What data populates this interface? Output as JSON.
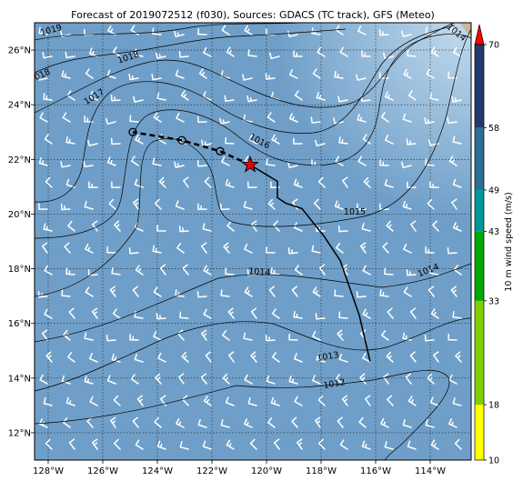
{
  "title": "Forecast of 2019072512 (f030), Sources: GDACS (TC track), GFS (Meteo)",
  "map": {
    "lon_range": [
      -128.5,
      -112.5
    ],
    "lat_range": [
      11,
      27
    ],
    "lon_ticks": [
      -128,
      -126,
      -124,
      -122,
      -120,
      -118,
      -116,
      -114
    ],
    "lon_tick_labels": [
      "128°W",
      "126°W",
      "124°W",
      "122°W",
      "120°W",
      "118°W",
      "116°W",
      "114°W"
    ],
    "lat_ticks": [
      12,
      14,
      16,
      18,
      20,
      22,
      24,
      26
    ],
    "lat_tick_labels": [
      "12°N",
      "14°N",
      "16°N",
      "18°N",
      "20°N",
      "22°N",
      "24°N",
      "26°N"
    ],
    "grid": true,
    "background_color": "#6f9fc8"
  },
  "colorbar": {
    "label": "10 m wind speed (m/s)",
    "tick_labels": [
      "10",
      "18",
      "33",
      "43",
      "49",
      "58",
      "70"
    ],
    "bands": [
      {
        "from": 10,
        "to": 18,
        "color": "#ffff00"
      },
      {
        "from": 18,
        "to": 33,
        "color": "#80d000"
      },
      {
        "from": 33,
        "to": 43,
        "color": "#00a800"
      },
      {
        "from": 43,
        "to": 49,
        "color": "#009999"
      },
      {
        "from": 49,
        "to": 58,
        "color": "#2a6f96"
      },
      {
        "from": 58,
        "to": 70,
        "color": "#223a70"
      }
    ],
    "extend_color": "#ff0000"
  },
  "isobars": [
    {
      "label": "1019"
    },
    {
      "label": "1018"
    },
    {
      "label": "1018"
    },
    {
      "label": "1017"
    },
    {
      "label": "1016"
    },
    {
      "label": "1015"
    },
    {
      "label": "1014"
    },
    {
      "label": "1014"
    },
    {
      "label": "1014"
    },
    {
      "label": "1013"
    },
    {
      "label": "1012"
    }
  ],
  "past_track": [
    [
      -116.2,
      14.6
    ],
    [
      -116.6,
      16.3
    ],
    [
      -117.3,
      18.3
    ],
    [
      -117.9,
      19.2
    ],
    [
      -118.7,
      20.2
    ],
    [
      -119.3,
      20.4
    ],
    [
      -119.6,
      20.6
    ],
    [
      -119.6,
      21.2
    ],
    [
      -120.6,
      21.8
    ]
  ],
  "current_position": [
    -120.6,
    21.8
  ],
  "forecast_track": [
    [
      -120.6,
      21.8
    ],
    [
      -121.7,
      22.3
    ],
    [
      -123.1,
      22.7
    ],
    [
      -124.9,
      23.0
    ]
  ],
  "forecast_points": [
    [
      -121.7,
      22.3
    ],
    [
      -123.1,
      22.7
    ],
    [
      -124.9,
      23.0
    ]
  ]
}
